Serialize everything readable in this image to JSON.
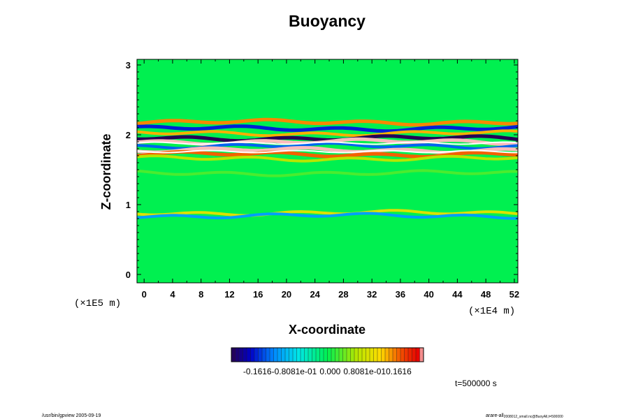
{
  "chart_data": {
    "type": "heatmap",
    "title": "Buoyancy",
    "xlabel": "X-coordinate",
    "ylabel": "Z-coordinate",
    "x_ticks": [
      "0",
      "4",
      "8",
      "12",
      "16",
      "20",
      "24",
      "28",
      "32",
      "36",
      "40",
      "44",
      "48",
      "52"
    ],
    "x_range": [
      -1,
      52.5
    ],
    "x_unit": "(×1E4 m)",
    "y_ticks": [
      "0",
      "1",
      "2",
      "3"
    ],
    "y_range": [
      -0.12,
      3.08
    ],
    "y_unit": "(×1E5 m)",
    "colorbar": {
      "range": [
        -0.1616,
        0.1616
      ],
      "tick_labels": [
        "-0.1616",
        "-0.8081e-01",
        "0.000",
        "0.8081e-01",
        "0.1616"
      ]
    },
    "time_label": "t=500000 s",
    "footer_left": "/usr/bin/gpview 2005-09-19",
    "footer_right_main": "arare-all",
    "footer_right_sub": "2008012_small.nc@BuoyAll,t=500000",
    "field_description": {
      "background_value": 0.0,
      "layers": [
        {
          "z": 2.18,
          "value": 0.11
        },
        {
          "z": 2.09,
          "value": -0.12
        },
        {
          "z": 2.02,
          "value": 0.1
        },
        {
          "z": 1.95,
          "value": -0.16
        },
        {
          "z": 1.9,
          "value": 0.16
        },
        {
          "z": 1.84,
          "value": -0.1
        },
        {
          "z": 1.78,
          "value": 0.16
        },
        {
          "z": 1.72,
          "value": 0.12
        },
        {
          "z": 1.66,
          "value": 0.05
        },
        {
          "z": 1.45,
          "value": 0.02
        },
        {
          "z": 0.88,
          "value": 0.07
        },
        {
          "z": 0.84,
          "value": -0.08
        }
      ]
    }
  }
}
